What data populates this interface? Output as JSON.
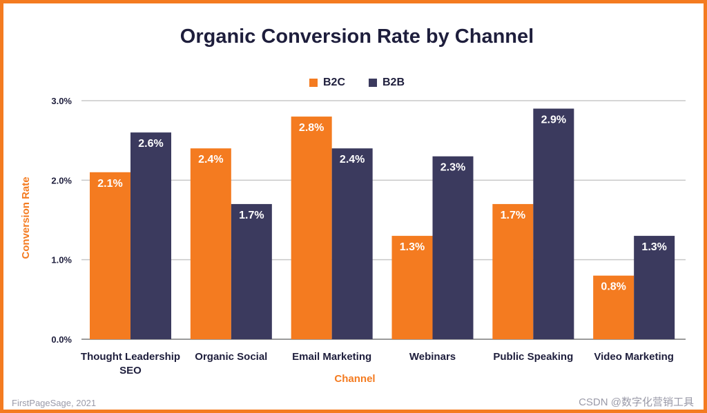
{
  "chart_data": {
    "type": "bar",
    "title": "Organic Conversion Rate by Channel",
    "xlabel": "Channel",
    "ylabel": "Conversion Rate",
    "ylim": [
      0,
      3
    ],
    "yticks": [
      "0.0%",
      "1.0%",
      "2.0%",
      "3.0%"
    ],
    "ytick_values": [
      0,
      1,
      2,
      3
    ],
    "grid": true,
    "legend_position": "top-center",
    "categories": [
      "Thought Leadership SEO",
      "Organic Social",
      "Email Marketing",
      "Webinars",
      "Public Speaking",
      "Video Marketing"
    ],
    "series": [
      {
        "name": "B2C",
        "color": "#f47b20",
        "values": [
          2.1,
          2.4,
          2.8,
          1.3,
          1.7,
          0.8
        ],
        "labels": [
          "2.1%",
          "2.4%",
          "2.8%",
          "1.3%",
          "1.7%",
          "0.8%"
        ]
      },
      {
        "name": "B2B",
        "color": "#3b3a5e",
        "values": [
          2.6,
          1.7,
          2.4,
          2.3,
          2.9,
          1.3
        ],
        "labels": [
          "2.6%",
          "1.7%",
          "2.4%",
          "2.3%",
          "2.9%",
          "1.3%"
        ]
      }
    ]
  },
  "footer": {
    "source": "FirstPageSage, 2021",
    "watermark": "CSDN @数字化营销工具"
  },
  "colors": {
    "accent": "#f47b20",
    "secondary": "#3b3a5e",
    "title": "#1e1e3c",
    "grid": "#c8c8c8"
  }
}
